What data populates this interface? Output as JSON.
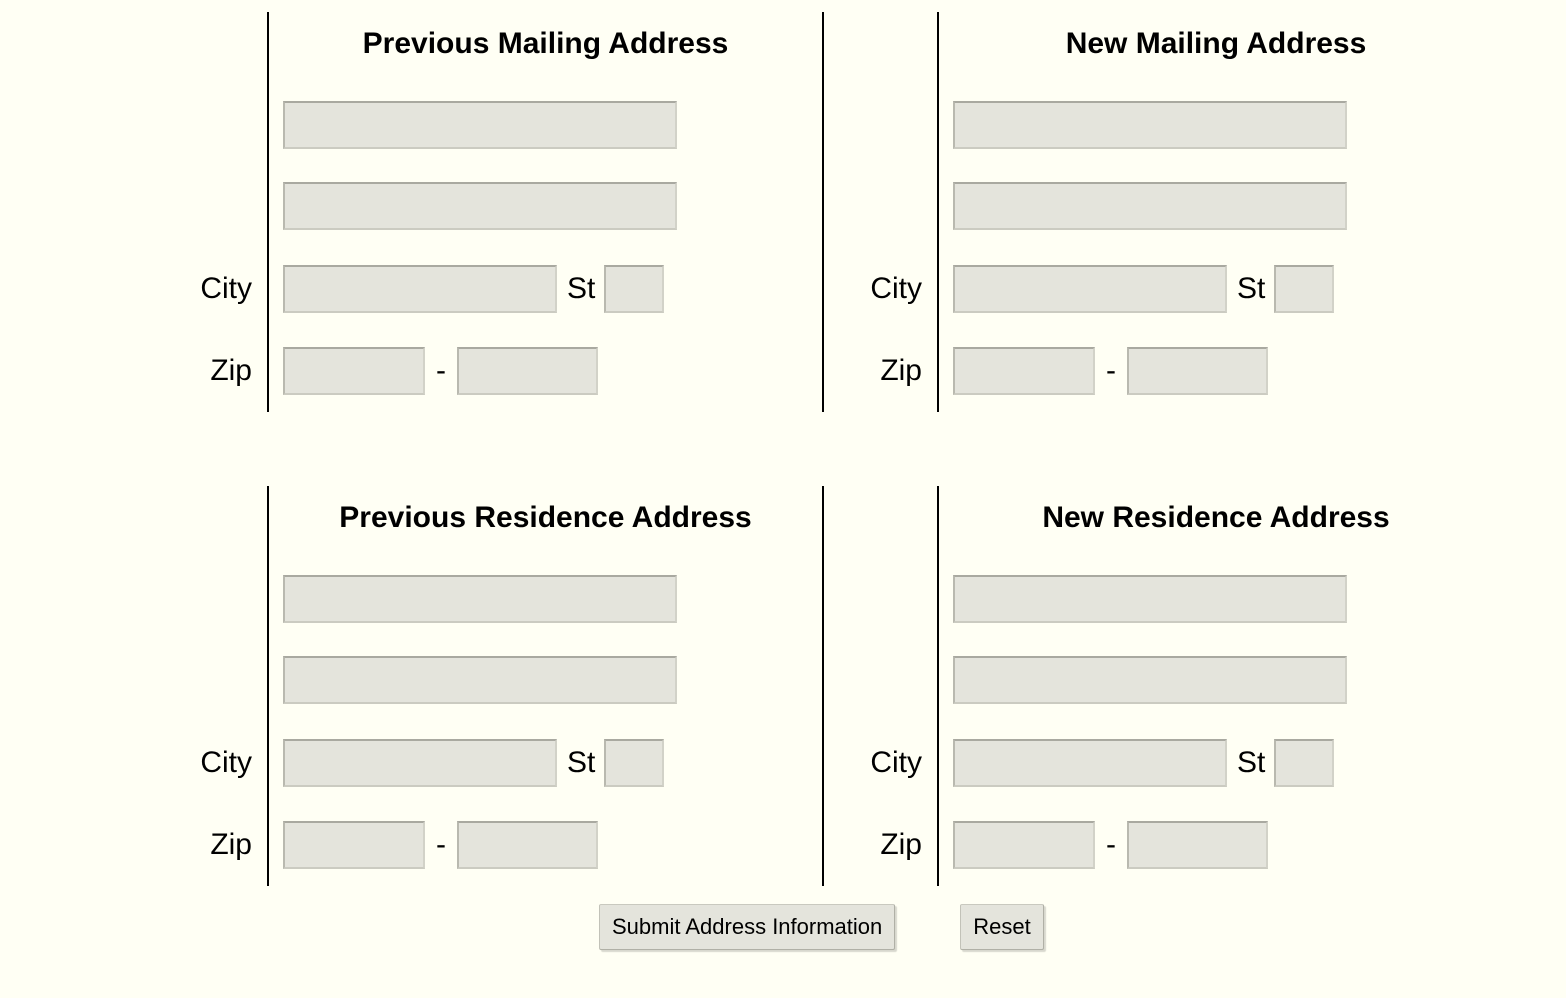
{
  "page": {
    "background_color": "#fffff4",
    "rule_color": "#000000",
    "input_fill_color": "#e4e4dc",
    "text_color": "#000000"
  },
  "quadrants": [
    {
      "title": "Previous Mailing Address",
      "labels": {
        "city": "City",
        "state": "St",
        "zip": "Zip",
        "zip_separator": "-"
      },
      "inputs": {
        "address_line1": "",
        "address_line2": "",
        "city": "",
        "state": "",
        "zip5": "",
        "zip4": ""
      }
    },
    {
      "title": "New Mailing Address",
      "labels": {
        "city": "City",
        "state": "St",
        "zip": "Zip",
        "zip_separator": "-"
      },
      "inputs": {
        "address_line1": "",
        "address_line2": "",
        "city": "",
        "state": "",
        "zip5": "",
        "zip4": ""
      }
    },
    {
      "title": "Previous Residence Address",
      "labels": {
        "city": "City",
        "state": "St",
        "zip": "Zip",
        "zip_separator": "-"
      },
      "inputs": {
        "address_line1": "",
        "address_line2": "",
        "city": "",
        "state": "",
        "zip5": "",
        "zip4": ""
      }
    },
    {
      "title": "New Residence Address",
      "labels": {
        "city": "City",
        "state": "St",
        "zip": "Zip",
        "zip_separator": "-"
      },
      "inputs": {
        "address_line1": "",
        "address_line2": "",
        "city": "",
        "state": "",
        "zip5": "",
        "zip4": ""
      }
    }
  ],
  "actions": {
    "submit_label": "Submit Address Information",
    "reset_label": "Reset"
  }
}
